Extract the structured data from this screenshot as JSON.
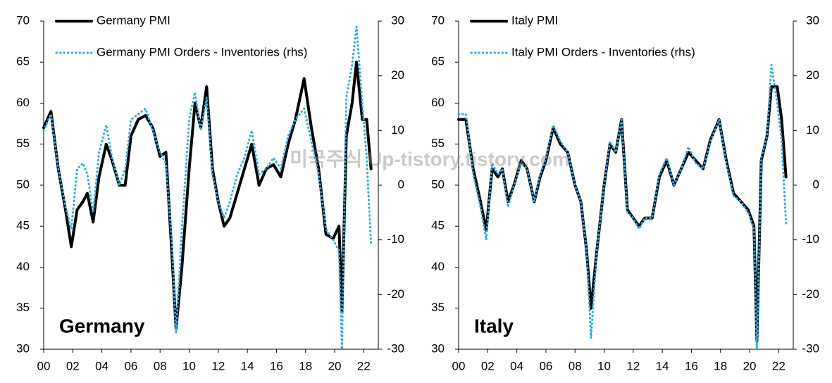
{
  "watermark": "미국주식 Up-tistory.tistory.com",
  "chart_data": [
    {
      "type": "line",
      "annotation": "Germany",
      "x": [
        2000,
        2000.5,
        2001,
        2001.5,
        2001.9,
        2002.3,
        2002.7,
        2003.0,
        2003.4,
        2003.8,
        2004.3,
        2004.7,
        2005.2,
        2005.6,
        2006.0,
        2006.5,
        2007.0,
        2007.5,
        2008.0,
        2008.4,
        2008.8,
        2009.1,
        2009.5,
        2010.0,
        2010.4,
        2010.8,
        2011.2,
        2011.6,
        2012.0,
        2012.4,
        2012.8,
        2013.3,
        2013.8,
        2014.3,
        2014.8,
        2015.3,
        2015.8,
        2016.3,
        2016.8,
        2017.3,
        2017.9,
        2018.4,
        2018.9,
        2019.4,
        2019.9,
        2020.3,
        2020.5,
        2020.8,
        2021.2,
        2021.5,
        2021.9,
        2022.2,
        2022.5
      ],
      "xlim": [
        2000,
        2023
      ],
      "xticks": [
        {
          "value": 2000,
          "label": "00"
        },
        {
          "value": 2002,
          "label": "02"
        },
        {
          "value": 2004,
          "label": "04"
        },
        {
          "value": 2006,
          "label": "06"
        },
        {
          "value": 2008,
          "label": "08"
        },
        {
          "value": 2010,
          "label": "10"
        },
        {
          "value": 2012,
          "label": "12"
        },
        {
          "value": 2014,
          "label": "14"
        },
        {
          "value": 2016,
          "label": "16"
        },
        {
          "value": 2018,
          "label": "18"
        },
        {
          "value": 2020,
          "label": "20"
        },
        {
          "value": 2022,
          "label": "22"
        }
      ],
      "ylim": [
        30,
        70
      ],
      "yticks": [
        30,
        35,
        40,
        45,
        50,
        55,
        60,
        65,
        70
      ],
      "y2lim": [
        -30,
        30
      ],
      "y2ticks": [
        -30,
        -20,
        -10,
        0,
        10,
        20,
        30
      ],
      "series": [
        {
          "name": "Germany PMI",
          "color": "#000000",
          "style": "solid",
          "values": [
            57,
            59,
            52,
            47,
            42.5,
            47,
            48,
            49,
            45.5,
            51,
            55,
            53,
            50,
            50,
            56,
            58,
            58.5,
            57,
            53.5,
            54,
            42,
            32.5,
            40,
            52,
            60,
            57,
            62,
            52,
            48,
            45,
            46,
            49,
            52,
            55,
            50,
            52,
            52.5,
            51,
            55,
            58,
            63,
            57,
            52,
            44,
            43.5,
            45,
            34.5,
            56,
            60,
            65,
            58,
            58,
            52
          ]
        },
        {
          "name": "Germany PMI Orders - Inventories (rhs)",
          "color": "#22b0ec",
          "style": "dotted",
          "axis": "y2",
          "values": [
            10,
            13,
            3,
            -4,
            -8,
            3,
            4,
            2,
            -5,
            6,
            11,
            5,
            0,
            3,
            12,
            13,
            14,
            10,
            6,
            4,
            -10,
            -27,
            -8,
            12,
            17,
            10,
            16,
            2,
            -3,
            -6,
            -3,
            2,
            5,
            10,
            2,
            3,
            5,
            3,
            9,
            12,
            14,
            8,
            2,
            -8,
            -10,
            -12,
            -30,
            16,
            22,
            29,
            15,
            5,
            -11
          ]
        }
      ]
    },
    {
      "type": "line",
      "annotation": "Italy",
      "x": [
        2000,
        2000.5,
        2001,
        2001.5,
        2001.9,
        2002.3,
        2002.7,
        2003.0,
        2003.4,
        2003.8,
        2004.3,
        2004.7,
        2005.2,
        2005.6,
        2006.0,
        2006.5,
        2007.0,
        2007.5,
        2008.0,
        2008.4,
        2008.8,
        2009.1,
        2009.5,
        2010.0,
        2010.4,
        2010.8,
        2011.2,
        2011.6,
        2012.0,
        2012.4,
        2012.8,
        2013.3,
        2013.8,
        2014.3,
        2014.8,
        2015.3,
        2015.8,
        2016.3,
        2016.8,
        2017.3,
        2017.9,
        2018.4,
        2018.9,
        2019.4,
        2019.9,
        2020.3,
        2020.5,
        2020.8,
        2021.2,
        2021.5,
        2021.9,
        2022.2,
        2022.5
      ],
      "xlim": [
        2000,
        2023
      ],
      "xticks": [
        {
          "value": 2000,
          "label": "00"
        },
        {
          "value": 2002,
          "label": "02"
        },
        {
          "value": 2004,
          "label": "04"
        },
        {
          "value": 2006,
          "label": "06"
        },
        {
          "value": 2008,
          "label": "08"
        },
        {
          "value": 2010,
          "label": "10"
        },
        {
          "value": 2012,
          "label": "12"
        },
        {
          "value": 2014,
          "label": "14"
        },
        {
          "value": 2016,
          "label": "16"
        },
        {
          "value": 2018,
          "label": "18"
        },
        {
          "value": 2020,
          "label": "20"
        },
        {
          "value": 2022,
          "label": "22"
        }
      ],
      "ylim": [
        30,
        70
      ],
      "yticks": [
        30,
        35,
        40,
        45,
        50,
        55,
        60,
        65,
        70
      ],
      "y2lim": [
        -30,
        30
      ],
      "y2ticks": [
        -30,
        -20,
        -10,
        0,
        10,
        20,
        30
      ],
      "series": [
        {
          "name": "Italy PMI",
          "color": "#000000",
          "style": "solid",
          "values": [
            58,
            58,
            52,
            48,
            44.5,
            52,
            51,
            52,
            48,
            50,
            53,
            52,
            48,
            51,
            53,
            57,
            55,
            54,
            50,
            48,
            42,
            35,
            42,
            50,
            55,
            54,
            58,
            47,
            46,
            45,
            46,
            46,
            51,
            53,
            50,
            52,
            54,
            53,
            52,
            55.5,
            58,
            53,
            49,
            48,
            47,
            45,
            31,
            53,
            56,
            62,
            62,
            58,
            51
          ]
        },
        {
          "name": "Italy PMI Orders - Inventories (rhs)",
          "color": "#22b0ec",
          "style": "dotted",
          "axis": "y2",
          "values": [
            13,
            13,
            2,
            -4,
            -10,
            4,
            2,
            3,
            -4,
            0,
            4,
            3,
            -3,
            2,
            5,
            11,
            8,
            6,
            0,
            -3,
            -12,
            -28,
            -12,
            0,
            8,
            6,
            12,
            -5,
            -6,
            -8,
            -6,
            -6,
            2,
            5,
            0,
            3,
            7,
            4,
            3,
            8,
            12,
            4,
            -2,
            -3,
            -5,
            -8,
            -30,
            5,
            9,
            22,
            15,
            8,
            -7
          ]
        }
      ]
    }
  ]
}
